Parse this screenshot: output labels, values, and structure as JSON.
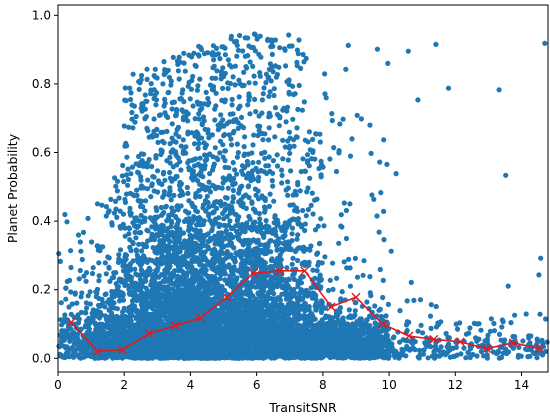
{
  "chart_data": {
    "type": "scatter",
    "title": "",
    "xlabel": "TransitSNR",
    "ylabel": "Planet Probability",
    "xlim": [
      0,
      14.8
    ],
    "ylim": [
      -0.04,
      1.03
    ],
    "grid": false,
    "legend": "none",
    "x_ticks": [
      {
        "value": 0,
        "label": "0"
      },
      {
        "value": 2,
        "label": "2"
      },
      {
        "value": 4,
        "label": "4"
      },
      {
        "value": 6,
        "label": "6"
      },
      {
        "value": 8,
        "label": "8"
      },
      {
        "value": 10,
        "label": "10"
      },
      {
        "value": 12,
        "label": "12"
      },
      {
        "value": 14,
        "label": "14"
      }
    ],
    "y_ticks": [
      {
        "value": 0.0,
        "label": "0.0"
      },
      {
        "value": 0.2,
        "label": "0.2"
      },
      {
        "value": 0.4,
        "label": "0.4"
      },
      {
        "value": 0.6,
        "label": "0.6"
      },
      {
        "value": 0.8,
        "label": "0.8"
      },
      {
        "value": 1.0,
        "label": "1.0"
      }
    ],
    "series": [
      {
        "kind": "scatter",
        "color": "#1f77b4",
        "description_of_density": "dense cloud peaking near TransitSNR 4-6, sparse beyond 8"
      },
      {
        "kind": "line",
        "color": "#e31a1c",
        "marker": "x",
        "x": [
          0.4,
          1.2,
          1.95,
          2.75,
          3.55,
          4.3,
          5.1,
          5.9,
          6.7,
          7.45,
          8.25,
          9.0,
          9.8,
          10.6,
          11.35,
          12.15,
          12.95,
          13.75,
          14.55
        ],
        "y": [
          0.105,
          0.02,
          0.025,
          0.072,
          0.095,
          0.118,
          0.178,
          0.248,
          0.255,
          0.255,
          0.15,
          0.178,
          0.1,
          0.065,
          0.055,
          0.048,
          0.028,
          0.045,
          0.028
        ]
      }
    ]
  }
}
